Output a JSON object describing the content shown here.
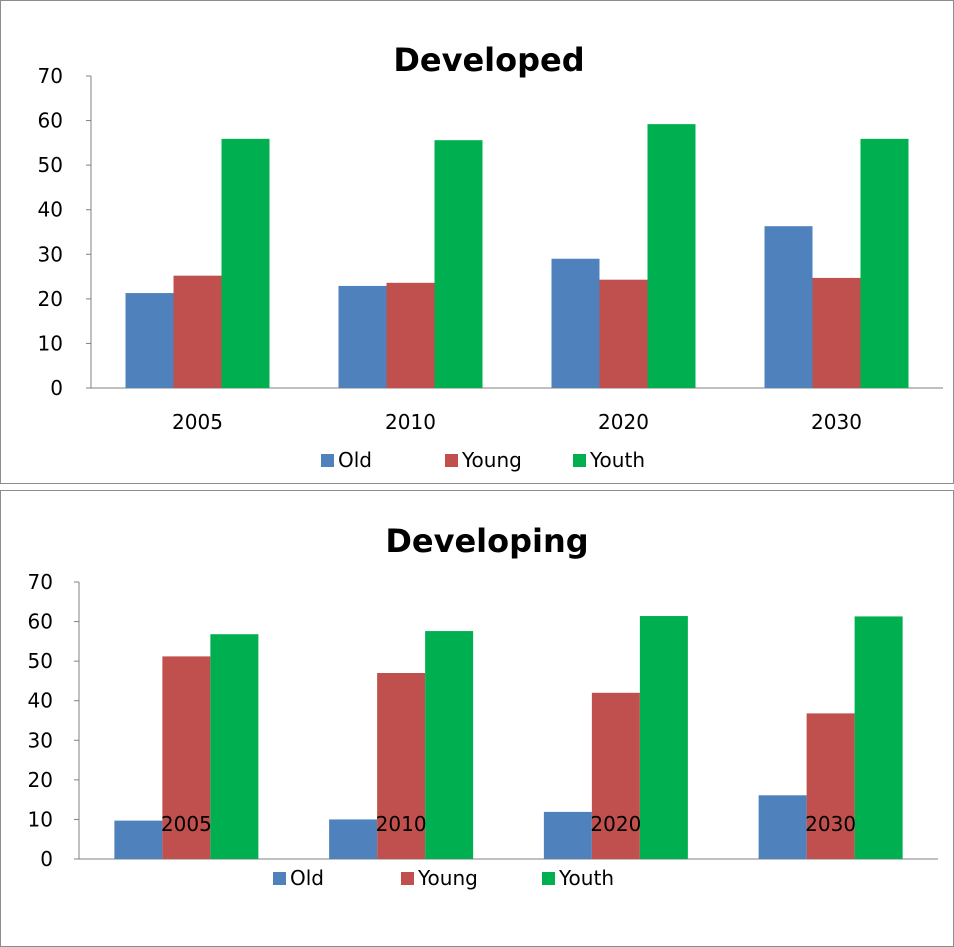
{
  "chart_data": [
    {
      "type": "bar",
      "title": "Developed",
      "categories": [
        "2005",
        "2010",
        "2020",
        "2030"
      ],
      "series": [
        {
          "name": "Old",
          "values": [
            21.3,
            22.9,
            29.0,
            36.3
          ]
        },
        {
          "name": "Young",
          "values": [
            25.2,
            23.6,
            24.3,
            24.7
          ]
        },
        {
          "name": "Youth",
          "values": [
            55.9,
            55.6,
            59.2,
            55.9
          ]
        }
      ],
      "colors": [
        "#4f81bd",
        "#c0504d",
        "#00b050"
      ],
      "ylim": [
        0,
        70
      ],
      "yticks": [
        "0",
        "10",
        "20",
        "30",
        "40",
        "50",
        "60",
        "70"
      ],
      "xlabel": "",
      "ylabel": "",
      "grid": false,
      "legend_position": "bottom"
    },
    {
      "type": "bar",
      "title": "Developing",
      "categories": [
        "2005",
        "2010",
        "2020",
        "2030"
      ],
      "series": [
        {
          "name": "Old",
          "values": [
            9.7,
            10.0,
            11.9,
            16.1
          ]
        },
        {
          "name": "Young",
          "values": [
            51.2,
            47.0,
            42.0,
            36.8
          ]
        },
        {
          "name": "Youth",
          "values": [
            56.8,
            57.6,
            61.4,
            61.3
          ]
        }
      ],
      "colors": [
        "#4f81bd",
        "#c0504d",
        "#00b050"
      ],
      "ylim": [
        0,
        70
      ],
      "yticks": [
        "0",
        "10",
        "20",
        "30",
        "40",
        "50",
        "60",
        "70"
      ],
      "xlabel": "",
      "ylabel": "",
      "grid": false,
      "legend_position": "bottom"
    }
  ]
}
